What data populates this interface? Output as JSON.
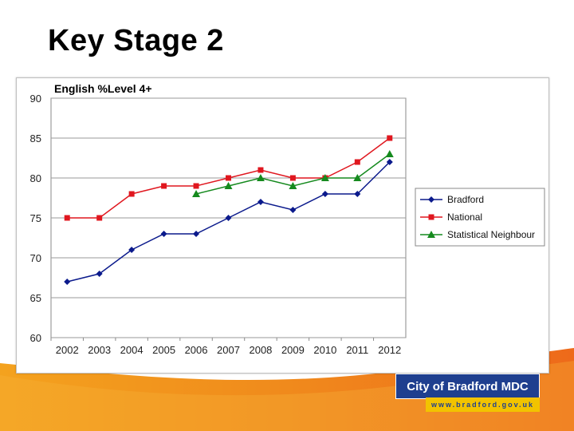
{
  "slide": {
    "title": "Key Stage 2"
  },
  "logo": {
    "name": "City of Bradford MDC",
    "url": "www.bradford.gov.uk"
  },
  "colors": {
    "bradford": "#0b1a8c",
    "national": "#e0171f",
    "statistical_neighbour": "#158a1e",
    "swoosh_orange": "#f08a1c",
    "logo_blue": "#1f3f8f",
    "logo_yellow": "#f2c300"
  },
  "chart_data": {
    "type": "line",
    "title": "English %Level 4+",
    "xlabel": "",
    "ylabel": "",
    "categories": [
      "2002",
      "2003",
      "2004",
      "2005",
      "2006",
      "2007",
      "2008",
      "2009",
      "2010",
      "2011",
      "2012"
    ],
    "ylim": [
      60,
      90
    ],
    "yticks": [
      60,
      65,
      70,
      75,
      80,
      85,
      90
    ],
    "grid": "horizontal",
    "legend_position": "right",
    "series": [
      {
        "name": "Bradford",
        "marker": "diamond",
        "values": [
          67,
          68,
          71,
          73,
          73,
          75,
          77,
          76,
          78,
          78,
          82
        ]
      },
      {
        "name": "National",
        "marker": "square",
        "values": [
          75,
          75,
          78,
          79,
          79,
          80,
          81,
          80,
          80,
          82,
          85
        ]
      },
      {
        "name": "Statistical Neighbour",
        "marker": "triangle",
        "values": [
          null,
          null,
          null,
          null,
          78,
          79,
          80,
          79,
          80,
          80,
          83
        ]
      }
    ]
  }
}
